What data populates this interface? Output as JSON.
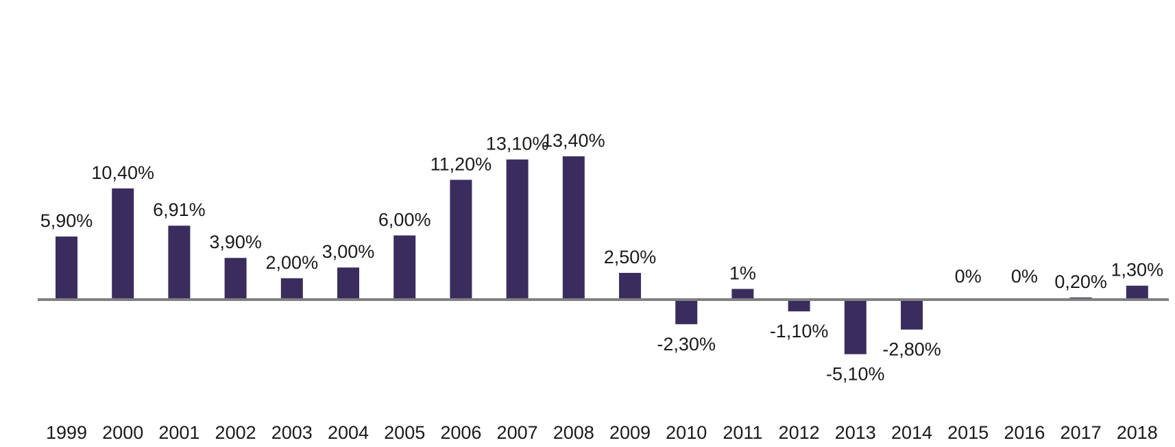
{
  "chart_data": {
    "type": "bar",
    "title": "",
    "xlabel": "",
    "ylabel": "",
    "categories": [
      "1999",
      "2000",
      "2001",
      "2002",
      "2003",
      "2004",
      "2005",
      "2006",
      "2007",
      "2008",
      "2009",
      "2010",
      "2011",
      "2012",
      "2013",
      "2014",
      "2015",
      "2016",
      "2017",
      "2018"
    ],
    "values": [
      5.9,
      10.4,
      6.91,
      3.9,
      2.0,
      3.0,
      6.0,
      11.2,
      13.1,
      13.4,
      2.5,
      -2.3,
      1.0,
      -1.1,
      -5.1,
      -2.8,
      0,
      0,
      0.2,
      1.3
    ],
    "data_labels": [
      "5,90%",
      "10,40%",
      "6,91%",
      "3,90%",
      "2,00%",
      "3,00%",
      "6,00%",
      "11,20%",
      "13,10%",
      "13,40%",
      "2,50%",
      "-2,30%",
      "1%",
      "-1,10%",
      "-5,10%",
      "-2,80%",
      "0%",
      "0%",
      "0,20%",
      "1,30%"
    ],
    "ylim": [
      -8,
      20
    ],
    "grid": false,
    "legend": "none",
    "colors": {
      "bar": "#3a2d5e",
      "axis": "#808080"
    }
  }
}
